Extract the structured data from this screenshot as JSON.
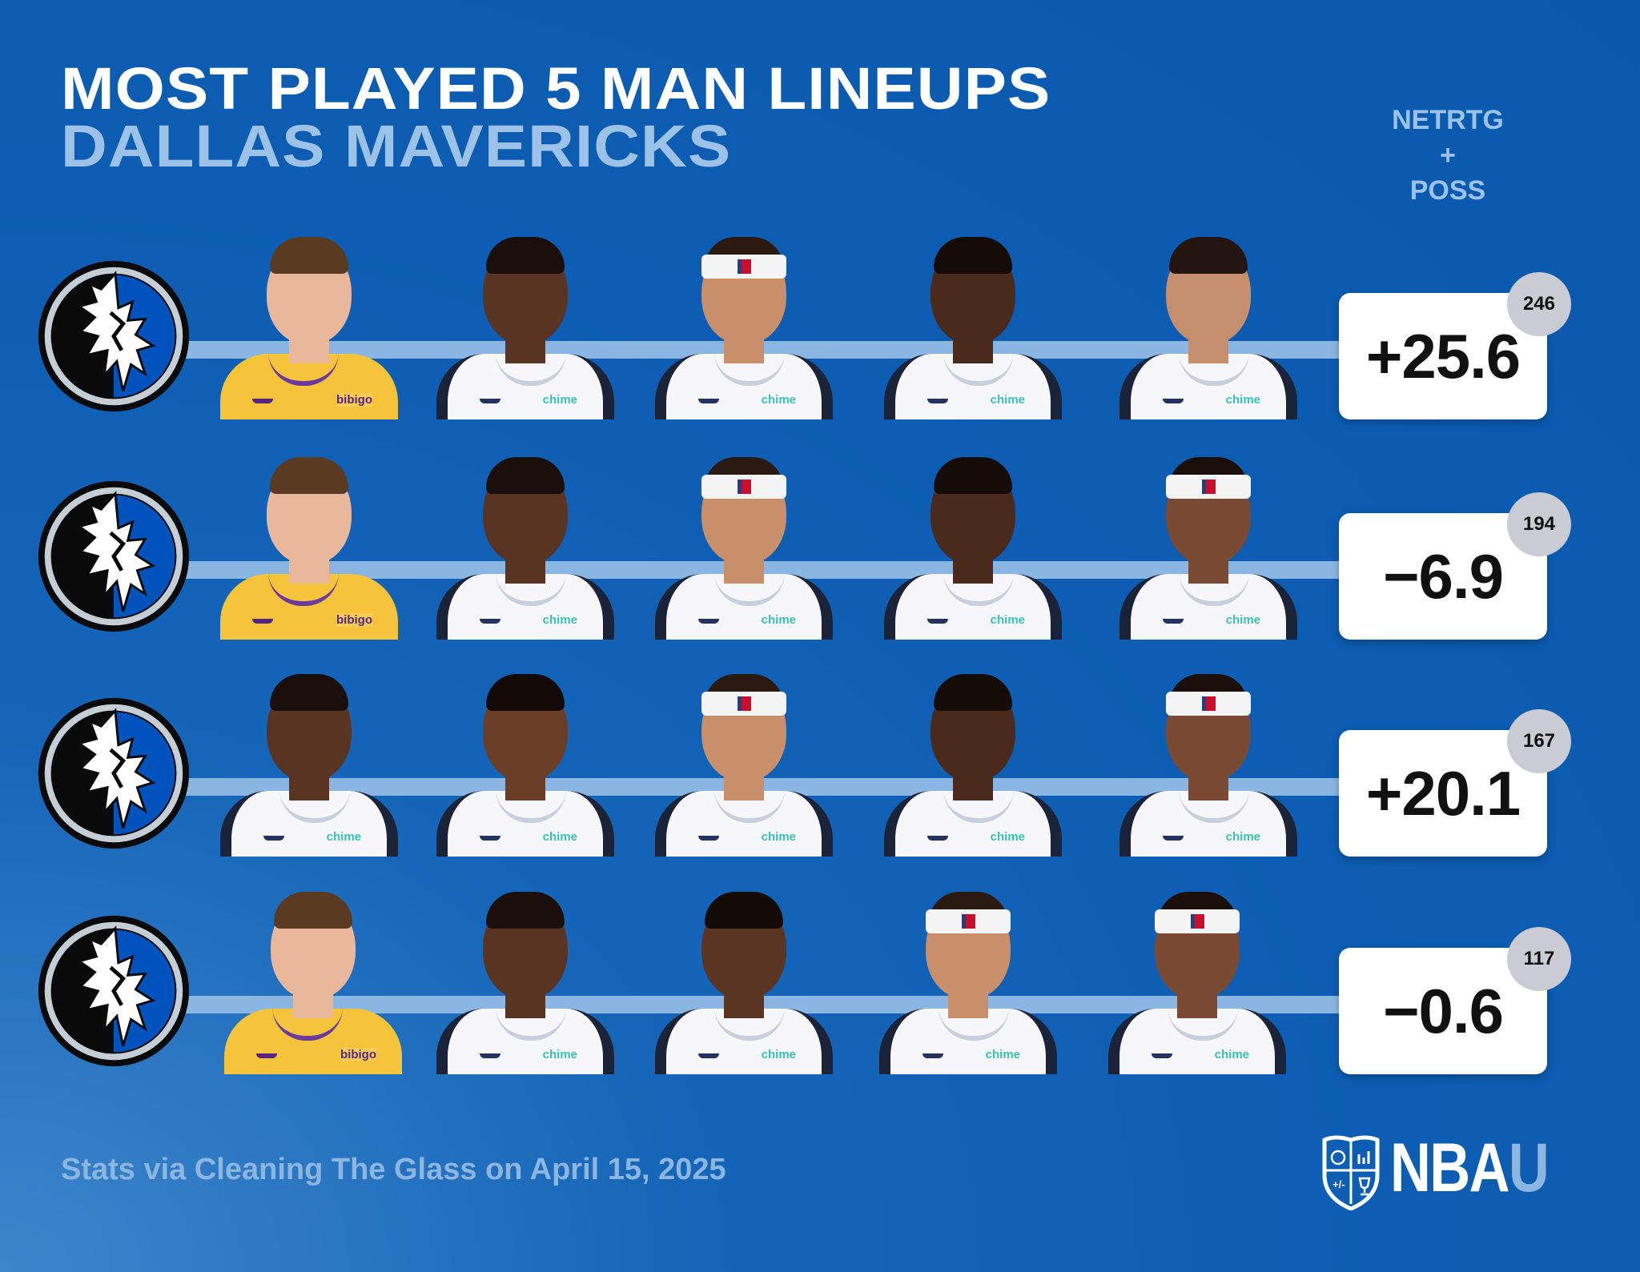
{
  "header": {
    "title": "MOST PLAYED 5 MAN LINEUPS",
    "team": "DALLAS MAVERICKS",
    "column_header": [
      "NETRTG",
      "+",
      "POSS"
    ]
  },
  "lineups": [
    {
      "netrtg": "+25.6",
      "poss": "246",
      "players": [
        {
          "jersey": "lal",
          "sponsor": "bibigo",
          "skin": "#e9b79a",
          "hair": "#5a3b22",
          "band": false
        },
        {
          "jersey": "dal",
          "sponsor": "chime",
          "skin": "#5a3422",
          "hair": "#1a0f0b",
          "band": false
        },
        {
          "jersey": "dal",
          "sponsor": "chime",
          "skin": "#c98e6a",
          "hair": "#2b1a12",
          "band": true
        },
        {
          "jersey": "dal",
          "sponsor": "chime",
          "skin": "#4a2a1c",
          "hair": "#150c08",
          "band": false
        },
        {
          "jersey": "dal",
          "sponsor": "chime",
          "skin": "#c58f6e",
          "hair": "#241510",
          "band": false
        }
      ]
    },
    {
      "netrtg": "−6.9",
      "poss": "194",
      "players": [
        {
          "jersey": "lal",
          "sponsor": "bibigo",
          "skin": "#e9b79a",
          "hair": "#5a3b22",
          "band": false
        },
        {
          "jersey": "dal",
          "sponsor": "chime",
          "skin": "#5a3422",
          "hair": "#1a0f0b",
          "band": false
        },
        {
          "jersey": "dal",
          "sponsor": "chime",
          "skin": "#c98e6a",
          "hair": "#2b1a12",
          "band": true
        },
        {
          "jersey": "dal",
          "sponsor": "chime",
          "skin": "#4a2a1c",
          "hair": "#150c08",
          "band": false
        },
        {
          "jersey": "dal",
          "sponsor": "chime",
          "skin": "#7a4a32",
          "hair": "#1a0f0b",
          "band": true
        }
      ]
    },
    {
      "netrtg": "+20.1",
      "poss": "167",
      "players": [
        {
          "jersey": "dal",
          "sponsor": "chime",
          "skin": "#5a3422",
          "hair": "#1a0f0b",
          "band": false
        },
        {
          "jersey": "dal",
          "sponsor": "chime",
          "skin": "#6b3e28",
          "hair": "#120a07",
          "band": false
        },
        {
          "jersey": "dal",
          "sponsor": "chime",
          "skin": "#c98e6a",
          "hair": "#2b1a12",
          "band": true
        },
        {
          "jersey": "dal",
          "sponsor": "chime",
          "skin": "#4a2a1c",
          "hair": "#150c08",
          "band": false
        },
        {
          "jersey": "dal",
          "sponsor": "chime",
          "skin": "#7a4a32",
          "hair": "#1a0f0b",
          "band": true
        }
      ]
    },
    {
      "netrtg": "−0.6",
      "poss": "117",
      "players": [
        {
          "jersey": "lal",
          "sponsor": "bibigo",
          "skin": "#e9b79a",
          "hair": "#5a3b22",
          "band": false
        },
        {
          "jersey": "dal",
          "sponsor": "chime",
          "skin": "#5a3422",
          "hair": "#1a0f0b",
          "band": false
        },
        {
          "jersey": "dal",
          "sponsor": "chime",
          "skin": "#5b3524",
          "hair": "#140b07",
          "band": false
        },
        {
          "jersey": "dal",
          "sponsor": "chime",
          "skin": "#c98e6a",
          "hair": "#2b1a12",
          "band": true
        },
        {
          "jersey": "dal",
          "sponsor": "chime",
          "skin": "#7a4a32",
          "hair": "#1a0f0b",
          "band": true
        }
      ]
    }
  ],
  "footer": {
    "source": "Stats via Cleaning The Glass on April 15, 2025",
    "brand_main": "NBA",
    "brand_accent": "U"
  },
  "colors": {
    "background": "#0c5db3",
    "accent_light": "#9cc2e8",
    "connector": "#8ab6e3",
    "poss_badge": "#c9ccd2"
  }
}
